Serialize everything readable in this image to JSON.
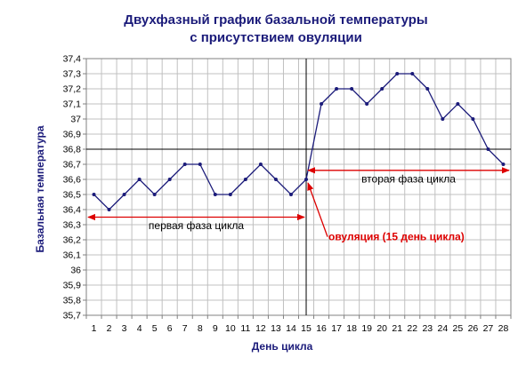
{
  "chart_data": {
    "type": "line",
    "title_line1": "Двухфазный график базальной температуры",
    "title_line2": "с присутствием овуляции",
    "xlabel": "День цикла",
    "ylabel": "Базальная температура",
    "x": [
      1,
      2,
      3,
      4,
      5,
      6,
      7,
      8,
      9,
      10,
      11,
      12,
      13,
      14,
      15,
      16,
      17,
      18,
      19,
      20,
      21,
      22,
      23,
      24,
      25,
      26,
      27,
      28
    ],
    "series": [
      {
        "values": [
          36.5,
          36.4,
          36.5,
          36.6,
          36.5,
          36.6,
          36.7,
          36.7,
          36.5,
          36.5,
          36.6,
          36.7,
          36.6,
          36.5,
          36.6,
          37.1,
          37.2,
          37.2,
          37.1,
          37.2,
          37.3,
          37.3,
          37.2,
          37.0,
          37.1,
          37.0,
          36.8,
          36.7
        ]
      }
    ],
    "y_ticks": [
      "35,7",
      "35,8",
      "35,9",
      "36",
      "36,1",
      "36,2",
      "36,3",
      "36,4",
      "36,5",
      "36,6",
      "36,7",
      "36,8",
      "36,9",
      "37",
      "37,1",
      "37,2",
      "37,3",
      "37,4"
    ],
    "x_ticks": [
      "1",
      "2",
      "3",
      "4",
      "5",
      "6",
      "7",
      "8",
      "9",
      "10",
      "11",
      "12",
      "13",
      "14",
      "15",
      "16",
      "17",
      "18",
      "19",
      "20",
      "21",
      "22",
      "23",
      "24",
      "25",
      "26",
      "27",
      "28"
    ],
    "ylim": [
      35.7,
      37.4
    ],
    "xlim": [
      0.5,
      28.5
    ],
    "grid": true,
    "reference_lines": {
      "horizontal_y": 36.8,
      "vertical_x": 15
    },
    "annotations": {
      "phase1": "первая фаза цикла",
      "phase2": "вторая фаза цикла",
      "ovulation": "овуляция (15 день цикла)"
    },
    "colors": {
      "line": "#1b1b7a",
      "title": "#1b1b7a",
      "arrow": "#dd0000",
      "grid": "#c0c0c0"
    }
  }
}
